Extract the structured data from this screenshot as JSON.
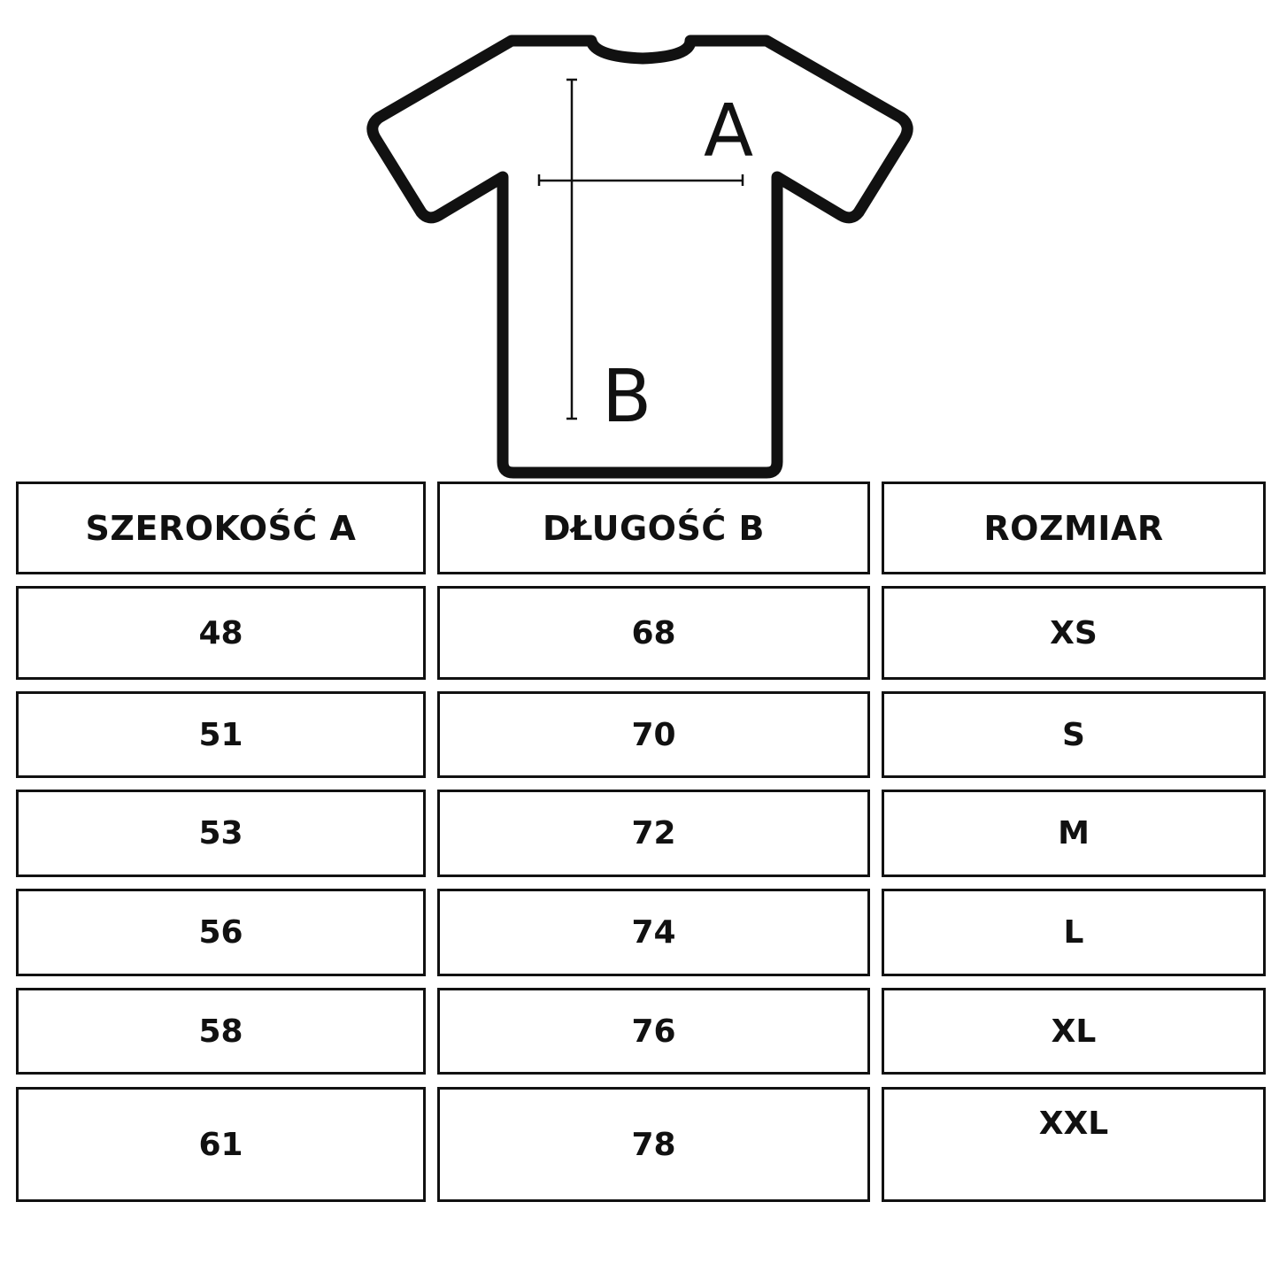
{
  "diagram": {
    "label_a": "A",
    "label_b": "B"
  },
  "table": {
    "headers": [
      "SZEROKOŚĆ A",
      "DŁUGOŚĆ B",
      "ROZMIAR"
    ],
    "rows": [
      [
        "48",
        "68",
        "XS"
      ],
      [
        "51",
        "70",
        "S"
      ],
      [
        "53",
        "72",
        "M"
      ],
      [
        "56",
        "74",
        "L"
      ],
      [
        "58",
        "76",
        "XL"
      ],
      [
        "61",
        "78",
        "XXL"
      ]
    ]
  },
  "colors": {
    "line": "#111111",
    "background": "#ffffff"
  }
}
